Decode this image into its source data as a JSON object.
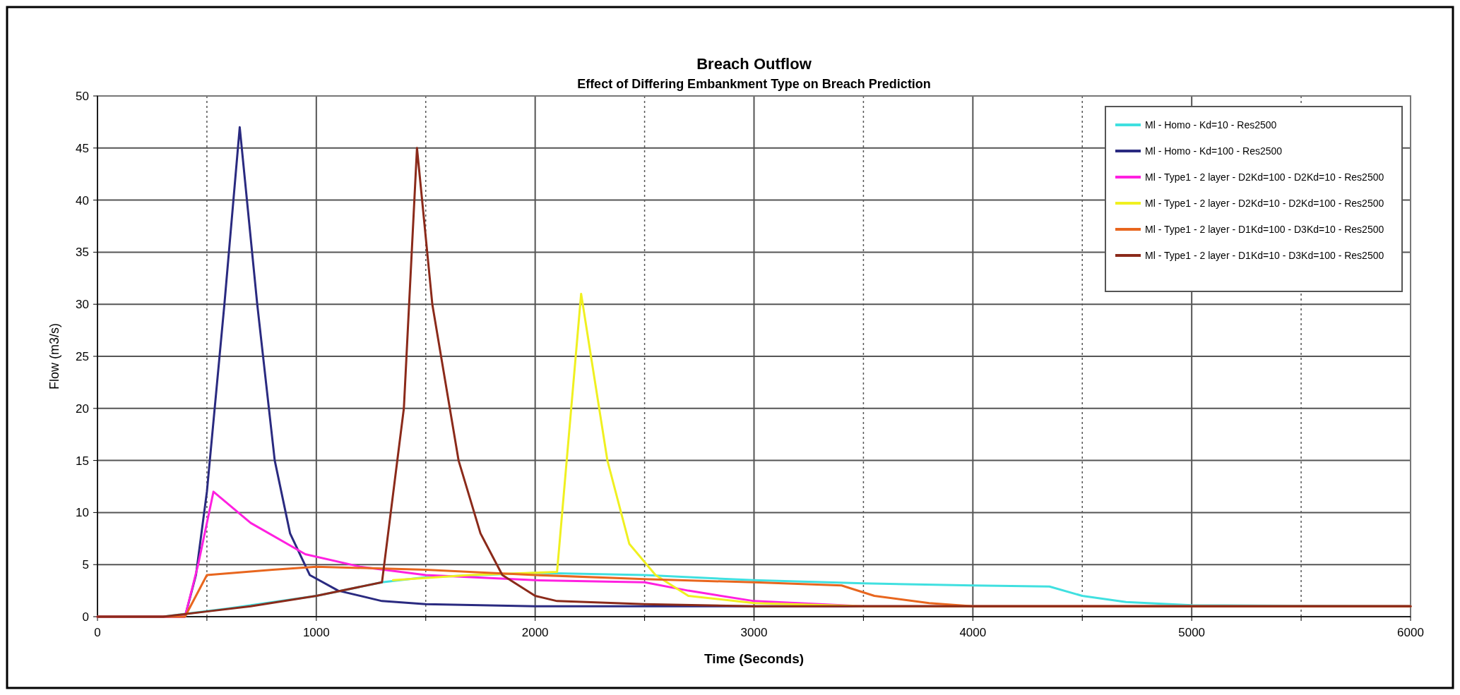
{
  "chart_data": {
    "type": "line",
    "title": "Breach Outflow",
    "subtitle": "Effect of Differing Embankment Type on Breach Prediction",
    "xlabel": "Time (Seconds)",
    "ylabel": "Flow (m3/s)",
    "xlim": [
      0,
      6000
    ],
    "ylim": [
      0,
      50
    ],
    "xticks": [
      0,
      {
        "value": 500,
        "label": null
      },
      1000,
      {
        "value": 1500,
        "label": null
      },
      2000,
      {
        "value": 2500,
        "label": null
      },
      3000,
      {
        "value": 3500,
        "label": null
      },
      4000,
      {
        "value": 4500,
        "label": null
      },
      5000,
      {
        "value": 5500,
        "label": null
      },
      6000
    ],
    "yticks": [
      0,
      5,
      10,
      15,
      20,
      25,
      30,
      35,
      40,
      45,
      50
    ],
    "grid": true,
    "legend": "top right",
    "marker": "none",
    "line_style": "solid",
    "series": [
      {
        "name": "Ml - Homo - Kd=10 - Res2500",
        "color": "#40e0e0",
        "x": [
          0,
          300,
          600,
          1000,
          1300,
          1500,
          2000,
          2500,
          3000,
          3500,
          4000,
          4350,
          4500,
          4700,
          5000,
          6000
        ],
        "values": [
          0,
          0,
          0.8,
          2,
          3.3,
          3.8,
          4.2,
          4,
          3.5,
          3.2,
          3,
          2.9,
          2,
          1.4,
          1.1,
          1
        ]
      },
      {
        "name": "Ml - Homo - Kd=100 - Res2500",
        "color": "#2a2a80",
        "x": [
          0,
          400,
          450,
          500,
          580,
          650,
          730,
          810,
          880,
          970,
          1100,
          1300,
          1500,
          2000,
          6000
        ],
        "values": [
          0,
          0,
          4,
          12,
          30,
          47,
          30,
          15,
          8,
          4,
          2.5,
          1.5,
          1.2,
          1,
          1
        ]
      },
      {
        "name": "Ml - Type1 - 2 layer - D2Kd=100 - D2Kd=10 - Res2500",
        "color": "#ff20e0",
        "x": [
          0,
          400,
          460,
          530,
          700,
          950,
          1200,
          1500,
          2000,
          2500,
          2700,
          3000,
          3500,
          6000
        ],
        "values": [
          0,
          0,
          5,
          12,
          9,
          6,
          4.8,
          4,
          3.5,
          3.3,
          2.5,
          1.5,
          1,
          1
        ]
      },
      {
        "name": "Ml - Type1 - 2 layer - D2Kd=10 - D2Kd=100 - Res2500",
        "color": "#f0f020",
        "x": [
          1350,
          1700,
          2100,
          2210,
          2330,
          2430,
          2550,
          2700,
          3000,
          3500,
          6000
        ],
        "values": [
          3.5,
          4,
          4.3,
          31,
          15,
          7,
          4,
          2,
          1.3,
          1,
          1
        ]
      },
      {
        "name": "Ml - Type1 - 2 layer - D1Kd=100 - D3Kd=10 - Res2500",
        "color": "#e8661e",
        "x": [
          0,
          400,
          500,
          800,
          1000,
          1500,
          2000,
          2500,
          3000,
          3400,
          3550,
          3800,
          4000,
          6000
        ],
        "values": [
          0,
          0,
          4,
          4.5,
          4.8,
          4.5,
          4,
          3.6,
          3.3,
          3,
          2,
          1.3,
          1,
          1
        ]
      },
      {
        "name": "Ml - Type1 - 2 layer - D1Kd=10 - D3Kd=100 - Res2500",
        "color": "#8b2a1a",
        "x": [
          0,
          300,
          500,
          700,
          1000,
          1300,
          1400,
          1460,
          1530,
          1650,
          1750,
          1850,
          2000,
          2100,
          2500,
          3000,
          6000
        ],
        "values": [
          0,
          0,
          0.5,
          1,
          2,
          3.3,
          20,
          45,
          30,
          15,
          8,
          4,
          2,
          1.5,
          1.2,
          1,
          1
        ]
      }
    ]
  }
}
